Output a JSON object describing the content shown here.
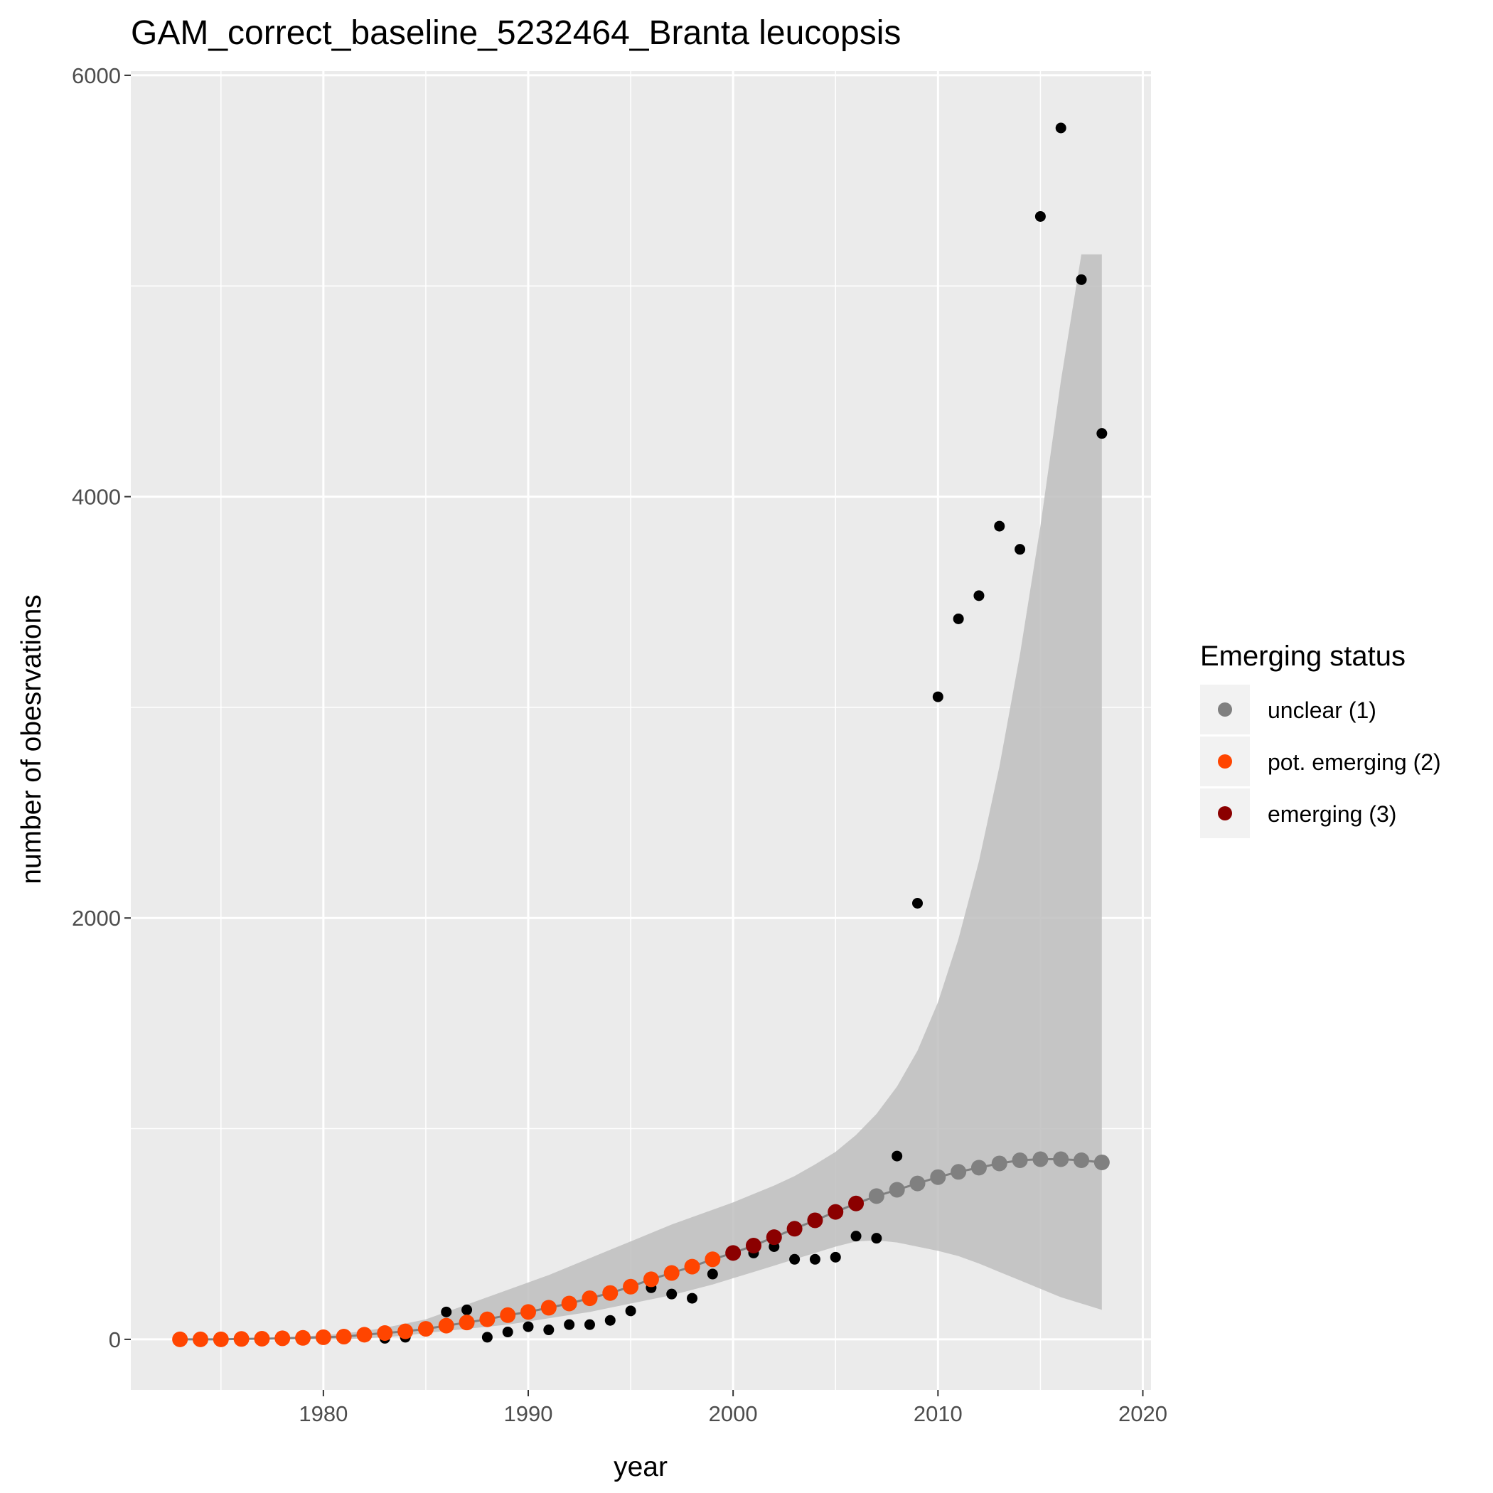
{
  "chart_data": {
    "type": "scatter",
    "title": "GAM_correct_baseline_5232464_Branta leucopsis",
    "xlabel": "year",
    "ylabel": "number of obesrvations",
    "xlim": [
      1970.6,
      2020.4
    ],
    "ylim": [
      -240,
      6020
    ],
    "x_ticks": [
      1980,
      1990,
      2000,
      2010,
      2020
    ],
    "x_tick_labels": [
      "1980",
      "1990",
      "2000",
      "2010",
      "2020"
    ],
    "y_ticks": [
      0,
      2000,
      4000,
      6000
    ],
    "y_tick_labels": [
      "0",
      "2000",
      "4000",
      "6000"
    ],
    "grid": true,
    "legend": {
      "title": "Emerging status",
      "position": "right",
      "entries": [
        {
          "label": "unclear (1)",
          "status": 1,
          "color": "#808080"
        },
        {
          "label": "pot. emerging (2)",
          "status": 2,
          "color": "#ff4500"
        },
        {
          "label": "emerging (3)",
          "status": 3,
          "color": "#8b0000"
        }
      ]
    },
    "colors": {
      "panel_background": "#ebebeb",
      "grid": "#ffffff",
      "ribbon": "#bebebe",
      "fit_line": "#808080",
      "observed": "#000000"
    },
    "observed": {
      "x": [
        1983,
        1984,
        1986,
        1987,
        1988,
        1989,
        1990,
        1991,
        1992,
        1993,
        1994,
        1995,
        1996,
        1997,
        1998,
        1999,
        2000,
        2001,
        2002,
        2003,
        2004,
        2005,
        2006,
        2007,
        2008,
        2009,
        2010,
        2011,
        2012,
        2013,
        2014,
        2015,
        2016,
        2017,
        2018
      ],
      "y": [
        5,
        10,
        130,
        140,
        10,
        35,
        60,
        45,
        70,
        70,
        90,
        135,
        245,
        215,
        195,
        310,
        400,
        410,
        440,
        380,
        380,
        390,
        490,
        480,
        870,
        2070,
        3050,
        3420,
        3530,
        3860,
        3750,
        5330,
        5750,
        5030,
        4300
      ]
    },
    "fit": {
      "x": [
        1973,
        1974,
        1975,
        1976,
        1977,
        1978,
        1979,
        1980,
        1981,
        1982,
        1983,
        1984,
        1985,
        1986,
        1987,
        1988,
        1989,
        1990,
        1991,
        1992,
        1993,
        1994,
        1995,
        1996,
        1997,
        1998,
        1999,
        2000,
        2001,
        2002,
        2003,
        2004,
        2005,
        2006,
        2007,
        2008,
        2009,
        2010,
        2011,
        2012,
        2013,
        2014,
        2015,
        2016,
        2017,
        2018
      ],
      "y": [
        0,
        0,
        0,
        2,
        3,
        5,
        7,
        10,
        13,
        22,
        30,
        38,
        50,
        65,
        80,
        95,
        115,
        130,
        150,
        170,
        195,
        220,
        250,
        285,
        315,
        345,
        380,
        410,
        445,
        485,
        525,
        565,
        605,
        645,
        680,
        710,
        740,
        770,
        795,
        815,
        835,
        850,
        855,
        855,
        850,
        840
      ],
      "status": [
        2,
        2,
        2,
        2,
        2,
        2,
        2,
        2,
        2,
        2,
        2,
        2,
        2,
        2,
        2,
        2,
        2,
        2,
        2,
        2,
        2,
        2,
        2,
        2,
        2,
        2,
        2,
        3,
        3,
        3,
        3,
        3,
        3,
        3,
        1,
        1,
        1,
        1,
        1,
        1,
        1,
        1,
        1,
        1,
        1,
        1
      ],
      "ci_lower": [
        0,
        0,
        0,
        0,
        0,
        0,
        0,
        0,
        0,
        5,
        10,
        18,
        30,
        40,
        50,
        60,
        70,
        85,
        100,
        115,
        130,
        150,
        170,
        190,
        210,
        235,
        260,
        290,
        320,
        350,
        380,
        410,
        440,
        465,
        470,
        460,
        440,
        420,
        395,
        360,
        320,
        280,
        240,
        200,
        170,
        140
      ],
      "ci_upper": [
        0,
        0,
        0,
        5,
        6,
        10,
        14,
        20,
        28,
        40,
        55,
        75,
        95,
        130,
        165,
        200,
        235,
        270,
        305,
        345,
        385,
        425,
        465,
        505,
        545,
        580,
        615,
        650,
        690,
        730,
        775,
        830,
        890,
        970,
        1070,
        1200,
        1370,
        1600,
        1900,
        2270,
        2720,
        3250,
        3860,
        4550,
        5150,
        5150
      ]
    }
  }
}
